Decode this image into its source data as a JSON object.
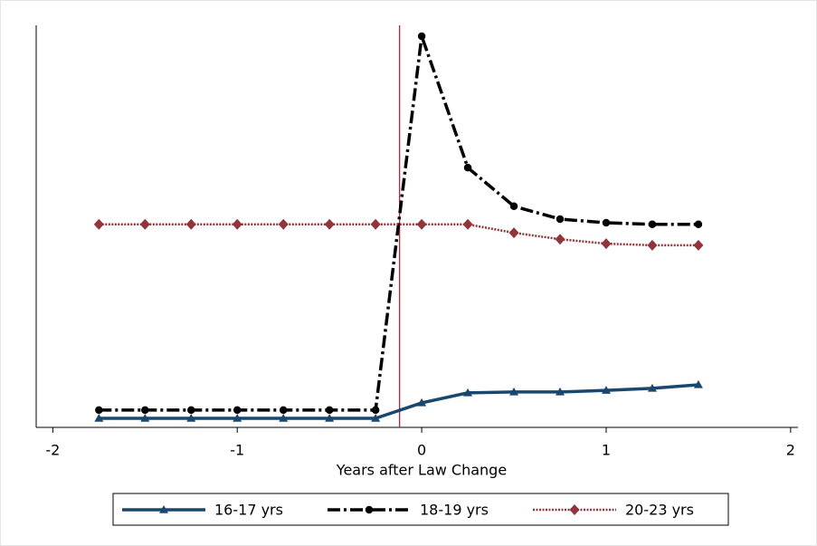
{
  "chart_data": {
    "type": "line",
    "x_label": "Years after Law Change",
    "x": [
      -1.75,
      -1.5,
      -1.25,
      -1,
      -0.75,
      -0.5,
      -0.25,
      0,
      0.25,
      0.5,
      0.75,
      1,
      1.25,
      1.5
    ],
    "series": [
      {
        "name": "16-17 yrs",
        "color": "#1a476f",
        "marker": "triangle",
        "line_style": "solid",
        "values": [
          2.25,
          2.25,
          2.25,
          2.25,
          2.25,
          2.25,
          2.25,
          6.1,
          8.6,
          8.8,
          8.8,
          9.2,
          9.7,
          10.6
        ]
      },
      {
        "name": "18-19 yrs",
        "color": "#000000",
        "marker": "circle",
        "line_style": "dashdot",
        "values": [
          4.3,
          4.3,
          4.3,
          4.3,
          4.3,
          4.3,
          4.3,
          97.3,
          64.6,
          55,
          51.8,
          50.9,
          50.5,
          50.5
        ]
      },
      {
        "name": "20-23 yrs",
        "color": "#90353b",
        "marker": "diamond",
        "line_style": "dotted",
        "values": [
          50.5,
          50.5,
          50.5,
          50.5,
          50.5,
          50.5,
          50.5,
          50.5,
          50.5,
          48.4,
          46.8,
          45.7,
          45.3,
          45.3
        ]
      }
    ],
    "xlim": [
      -2.09,
      2.04
    ],
    "xticks": [
      -2,
      -1,
      0,
      1,
      2
    ],
    "ylim": [
      0,
      100
    ],
    "vline": {
      "value": -0.12,
      "color": "#c0203a"
    },
    "legend": "bottom"
  }
}
